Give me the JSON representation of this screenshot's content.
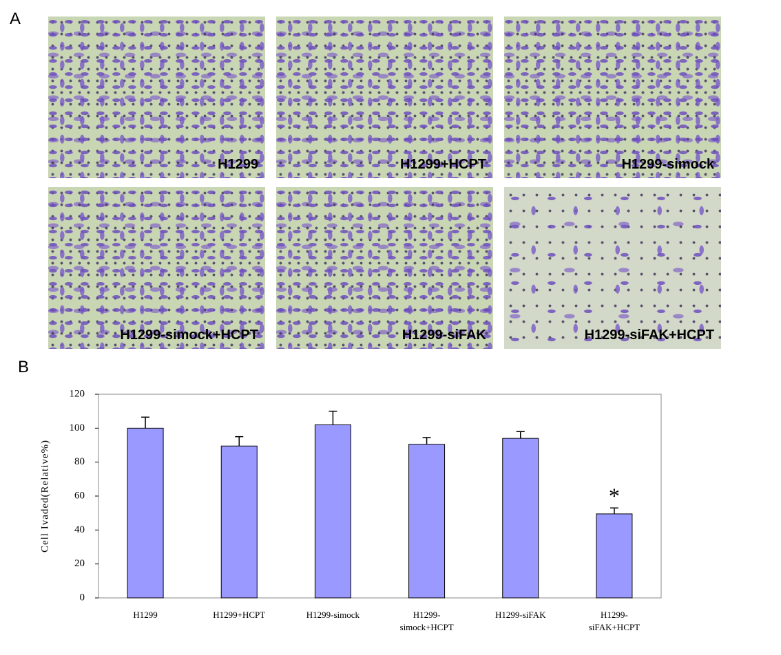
{
  "panel_a": {
    "label": "A",
    "images": [
      "H1299",
      "H1299+HCPT",
      "H1299-simock",
      "H1299-simock+HCPT",
      "H1299-siFAK",
      "H1299-siFAK+HCPT"
    ]
  },
  "chart_data": {
    "type": "bar",
    "panel_label": "B",
    "y_label": "Cell Ivaded(Relative%)",
    "categories": [
      "H1299",
      "H1299+HCPT",
      "H1299-simock",
      "H1299-simock+HCPT",
      "H1299-siFAK",
      "H1299-siFAK+HCPT"
    ],
    "values": [
      100,
      89.5,
      102,
      90.5,
      94,
      49.5
    ],
    "errors": [
      6.5,
      5.5,
      8,
      4,
      4,
      3.5
    ],
    "color": "#9999ff",
    "annotation": {
      "text": "*",
      "category": "H1299-siFAK+HCPT"
    },
    "ylim": [
      0,
      120
    ],
    "yticks": [
      0,
      20,
      40,
      60,
      80,
      100,
      120
    ],
    "grid": false
  }
}
